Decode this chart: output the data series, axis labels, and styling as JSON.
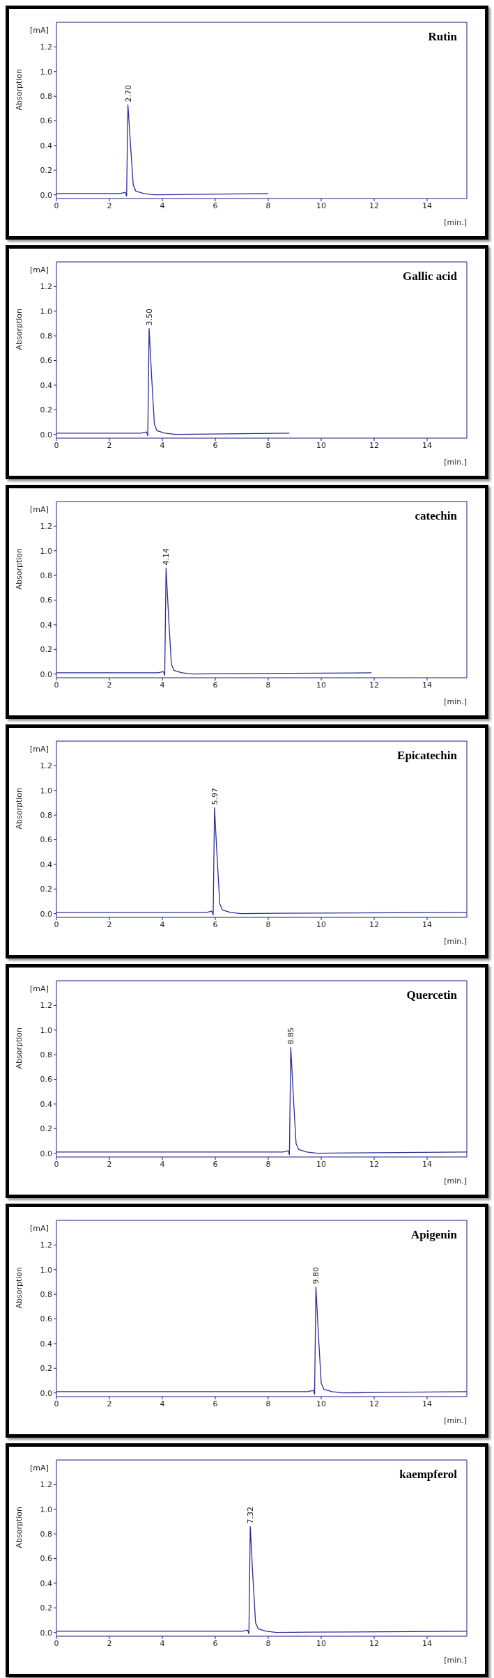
{
  "chart_data": [
    {
      "type": "line",
      "title": "Rutin",
      "xlabel": "[min.]",
      "ylabel": "Absorption",
      "annotations": [
        "[mA]",
        {
          "text": "2.70",
          "x": 2.7,
          "y": 0.73
        }
      ],
      "xlim": [
        0,
        15.5
      ],
      "xticks": [
        0,
        2,
        4,
        6,
        8,
        10,
        12,
        14
      ],
      "ylim": [
        -0.03,
        1.4
      ],
      "yticks": [
        {
          "value": 0,
          "label": "0.0"
        },
        {
          "value": 0.2,
          "label": "0.2"
        },
        {
          "value": 0.4,
          "label": "0.4"
        },
        {
          "value": 0.6,
          "label": "0.6"
        },
        {
          "value": 0.8,
          "label": "0.8"
        },
        {
          "value": 1,
          "label": "1.0"
        },
        {
          "value": 1.2,
          "label": "1.2"
        }
      ],
      "grid": false,
      "legend": false,
      "marker": "none",
      "series": [
        {
          "color": "#2b2b9a",
          "x": [
            0,
            2.4,
            2.6,
            2.65,
            2.7,
            2.8,
            2.9,
            3.0,
            3.3,
            3.7,
            5.0,
            8.0
          ],
          "values": [
            0.01,
            0.01,
            0.02,
            -0.01,
            0.73,
            0.4,
            0.08,
            0.03,
            0.01,
            0,
            0.003,
            0.01
          ]
        }
      ]
    },
    {
      "type": "line",
      "title": "Gallic acid",
      "xlabel": "[min.]",
      "ylabel": "Absorption",
      "annotations": [
        "[mA]",
        {
          "text": "3.50",
          "x": 3.5,
          "y": 0.86
        }
      ],
      "xlim": [
        0,
        15.5
      ],
      "xticks": [
        0,
        2,
        4,
        6,
        8,
        10,
        12,
        14
      ],
      "ylim": [
        -0.03,
        1.4
      ],
      "yticks": [
        {
          "value": 0,
          "label": "0.0"
        },
        {
          "value": 0.2,
          "label": "0.2"
        },
        {
          "value": 0.4,
          "label": "0.4"
        },
        {
          "value": 0.6,
          "label": "0.6"
        },
        {
          "value": 0.8,
          "label": "0.8"
        },
        {
          "value": 1,
          "label": "1.0"
        },
        {
          "value": 1.2,
          "label": "1.2"
        }
      ],
      "grid": false,
      "legend": false,
      "marker": "none",
      "series": [
        {
          "color": "#2b2b9a",
          "x": [
            0,
            3.2,
            3.4,
            3.45,
            3.5,
            3.6,
            3.7,
            3.8,
            4.1,
            4.5,
            5.8,
            8.8
          ],
          "values": [
            0.01,
            0.01,
            0.02,
            -0.01,
            0.86,
            0.45,
            0.08,
            0.03,
            0.01,
            0,
            0.003,
            0.01
          ]
        }
      ]
    },
    {
      "type": "line",
      "title": "catechin",
      "xlabel": "[min.]",
      "ylabel": "Absorption",
      "annotations": [
        "[mA]",
        {
          "text": "4.14",
          "x": 4.14,
          "y": 0.86
        }
      ],
      "xlim": [
        0,
        15.5
      ],
      "xticks": [
        0,
        2,
        4,
        6,
        8,
        10,
        12,
        14
      ],
      "ylim": [
        -0.03,
        1.4
      ],
      "yticks": [
        {
          "value": 0,
          "label": "0.0"
        },
        {
          "value": 0.2,
          "label": "0.2"
        },
        {
          "value": 0.4,
          "label": "0.4"
        },
        {
          "value": 0.6,
          "label": "0.6"
        },
        {
          "value": 0.8,
          "label": "0.8"
        },
        {
          "value": 1,
          "label": "1.0"
        },
        {
          "value": 1.2,
          "label": "1.2"
        }
      ],
      "grid": false,
      "legend": false,
      "marker": "none",
      "series": [
        {
          "color": "#2b2b9a",
          "x": [
            0,
            3.84,
            4.04,
            4.09,
            4.14,
            4.24,
            4.34,
            4.44,
            4.74,
            5.14,
            6.44,
            11.9
          ],
          "values": [
            0.01,
            0.01,
            0.02,
            -0.01,
            0.86,
            0.45,
            0.08,
            0.03,
            0.01,
            0,
            0.003,
            0.01
          ]
        }
      ]
    },
    {
      "type": "line",
      "title": "Epicatechin",
      "xlabel": "[min.]",
      "ylabel": "Absorption",
      "annotations": [
        "[mA]",
        {
          "text": "5.97",
          "x": 5.97,
          "y": 0.86
        }
      ],
      "xlim": [
        0,
        15.5
      ],
      "xticks": [
        0,
        2,
        4,
        6,
        8,
        10,
        12,
        14
      ],
      "ylim": [
        -0.03,
        1.4
      ],
      "yticks": [
        {
          "value": 0,
          "label": "0.0"
        },
        {
          "value": 0.2,
          "label": "0.2"
        },
        {
          "value": 0.4,
          "label": "0.4"
        },
        {
          "value": 0.6,
          "label": "0.6"
        },
        {
          "value": 0.8,
          "label": "0.8"
        },
        {
          "value": 1,
          "label": "1.0"
        },
        {
          "value": 1.2,
          "label": "1.2"
        }
      ],
      "grid": false,
      "legend": false,
      "marker": "none",
      "series": [
        {
          "color": "#2b2b9a",
          "x": [
            0,
            5.67,
            5.87,
            5.92,
            5.97,
            6.07,
            6.17,
            6.27,
            6.57,
            6.97,
            8.27,
            15.5
          ],
          "values": [
            0.01,
            0.01,
            0.02,
            -0.01,
            0.86,
            0.45,
            0.08,
            0.03,
            0.01,
            0,
            0.003,
            0.01
          ]
        }
      ]
    },
    {
      "type": "line",
      "title": "Quercetin",
      "xlabel": "[min.]",
      "ylabel": "Absorption",
      "annotations": [
        "[mA]",
        {
          "text": "8.85",
          "x": 8.85,
          "y": 0.86
        }
      ],
      "xlim": [
        0,
        15.5
      ],
      "xticks": [
        0,
        2,
        4,
        6,
        8,
        10,
        12,
        14
      ],
      "ylim": [
        -0.03,
        1.4
      ],
      "yticks": [
        {
          "value": 0,
          "label": "0.0"
        },
        {
          "value": 0.2,
          "label": "0.2"
        },
        {
          "value": 0.4,
          "label": "0.4"
        },
        {
          "value": 0.6,
          "label": "0.6"
        },
        {
          "value": 0.8,
          "label": "0.8"
        },
        {
          "value": 1,
          "label": "1.0"
        },
        {
          "value": 1.2,
          "label": "1.2"
        }
      ],
      "grid": false,
      "legend": false,
      "marker": "none",
      "series": [
        {
          "color": "#2b2b9a",
          "x": [
            0,
            8.55,
            8.75,
            8.8,
            8.85,
            8.95,
            9.05,
            9.15,
            9.45,
            9.85,
            11.15,
            15.5
          ],
          "values": [
            0.01,
            0.01,
            0.02,
            -0.01,
            0.86,
            0.45,
            0.08,
            0.03,
            0.01,
            0,
            0.003,
            0.01
          ]
        }
      ]
    },
    {
      "type": "line",
      "title": "Apigenin",
      "xlabel": "[min.]",
      "ylabel": "Absorption",
      "annotations": [
        "[mA]",
        {
          "text": "9.80",
          "x": 9.8,
          "y": 0.86
        }
      ],
      "xlim": [
        0,
        15.5
      ],
      "xticks": [
        0,
        2,
        4,
        6,
        8,
        10,
        12,
        14
      ],
      "ylim": [
        -0.03,
        1.4
      ],
      "yticks": [
        {
          "value": 0,
          "label": "0.0"
        },
        {
          "value": 0.2,
          "label": "0.2"
        },
        {
          "value": 0.4,
          "label": "0.4"
        },
        {
          "value": 0.6,
          "label": "0.6"
        },
        {
          "value": 0.8,
          "label": "0.8"
        },
        {
          "value": 1,
          "label": "1.0"
        },
        {
          "value": 1.2,
          "label": "1.2"
        }
      ],
      "grid": false,
      "legend": false,
      "marker": "none",
      "series": [
        {
          "color": "#2b2b9a",
          "x": [
            0,
            9.5,
            9.7,
            9.75,
            9.8,
            9.9,
            10.0,
            10.1,
            10.4,
            10.8,
            12.1,
            15.5
          ],
          "values": [
            0.01,
            0.01,
            0.02,
            -0.01,
            0.86,
            0.45,
            0.08,
            0.03,
            0.01,
            0,
            0.003,
            0.01
          ]
        }
      ]
    },
    {
      "type": "line",
      "title": "kaempferol",
      "xlabel": "[min.]",
      "ylabel": "Absorption",
      "annotations": [
        "[mA]",
        {
          "text": "7.32",
          "x": 7.32,
          "y": 0.86
        }
      ],
      "xlim": [
        0,
        15.5
      ],
      "xticks": [
        0,
        2,
        4,
        6,
        8,
        10,
        12,
        14
      ],
      "ylim": [
        -0.03,
        1.4
      ],
      "yticks": [
        {
          "value": 0,
          "label": "0.0"
        },
        {
          "value": 0.2,
          "label": "0.2"
        },
        {
          "value": 0.4,
          "label": "0.4"
        },
        {
          "value": 0.6,
          "label": "0.6"
        },
        {
          "value": 0.8,
          "label": "0.8"
        },
        {
          "value": 1,
          "label": "1.0"
        },
        {
          "value": 1.2,
          "label": "1.2"
        }
      ],
      "grid": false,
      "legend": false,
      "marker": "none",
      "series": [
        {
          "color": "#2b2b9a",
          "x": [
            0,
            7.02,
            7.22,
            7.27,
            7.32,
            7.42,
            7.52,
            7.62,
            7.92,
            8.32,
            9.62,
            15.5
          ],
          "values": [
            0.01,
            0.01,
            0.02,
            -0.01,
            0.86,
            0.45,
            0.08,
            0.03,
            0.01,
            0,
            0.003,
            0.01
          ]
        }
      ]
    }
  ]
}
